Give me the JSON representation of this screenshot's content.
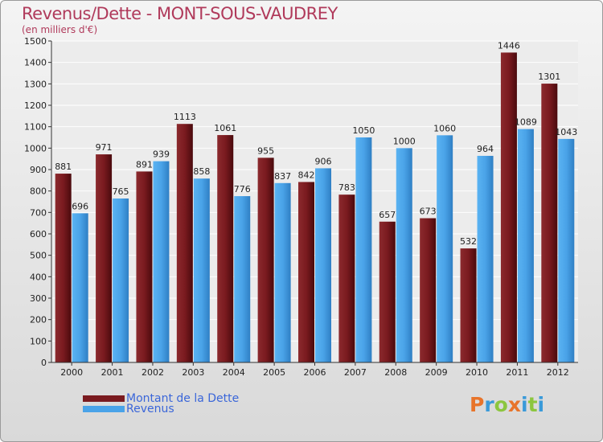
{
  "title": "Revenus/Dette - MONT-SOUS-VAUDREY",
  "subtitle": "(en milliers d'€)",
  "legend": [
    {
      "label": "Montant de la Dette",
      "color": "#7a1a1f"
    },
    {
      "label": "Revenus",
      "color": "#4aa3e8"
    }
  ],
  "logo": {
    "text": "Proxiti",
    "letters": [
      {
        "char": "P",
        "color": "#e8742a"
      },
      {
        "char": "r",
        "color": "#3a9ad9"
      },
      {
        "char": "o",
        "color": "#8cc63f"
      },
      {
        "char": "x",
        "color": "#e8742a"
      },
      {
        "char": "i",
        "color": "#3a9ad9"
      },
      {
        "char": "t",
        "color": "#8cc63f"
      },
      {
        "char": "i",
        "color": "#3a9ad9"
      }
    ]
  },
  "chart_data": {
    "type": "bar",
    "title": "Revenus/Dette - MONT-SOUS-VAUDREY",
    "subtitle": "(en milliers d'€)",
    "categories": [
      "2000",
      "2001",
      "2002",
      "2003",
      "2004",
      "2005",
      "2006",
      "2007",
      "2008",
      "2009",
      "2010",
      "2011",
      "2012"
    ],
    "series": [
      {
        "name": "Montant de la Dette",
        "color": "#7a1a1f",
        "values": [
          881,
          971,
          891,
          1113,
          1061,
          955,
          842,
          783,
          657,
          673,
          532,
          1446,
          1301
        ]
      },
      {
        "name": "Revenus",
        "color": "#4aa3e8",
        "values": [
          696,
          765,
          939,
          858,
          776,
          837,
          906,
          1050,
          1000,
          1060,
          964,
          1089,
          1043
        ]
      }
    ],
    "ylim": [
      0,
      1500
    ],
    "yticks": [
      0,
      100,
      200,
      300,
      400,
      500,
      600,
      700,
      800,
      900,
      1000,
      1100,
      1200,
      1300,
      1400,
      1500
    ],
    "grid": true,
    "legend_position": "bottom-left"
  }
}
